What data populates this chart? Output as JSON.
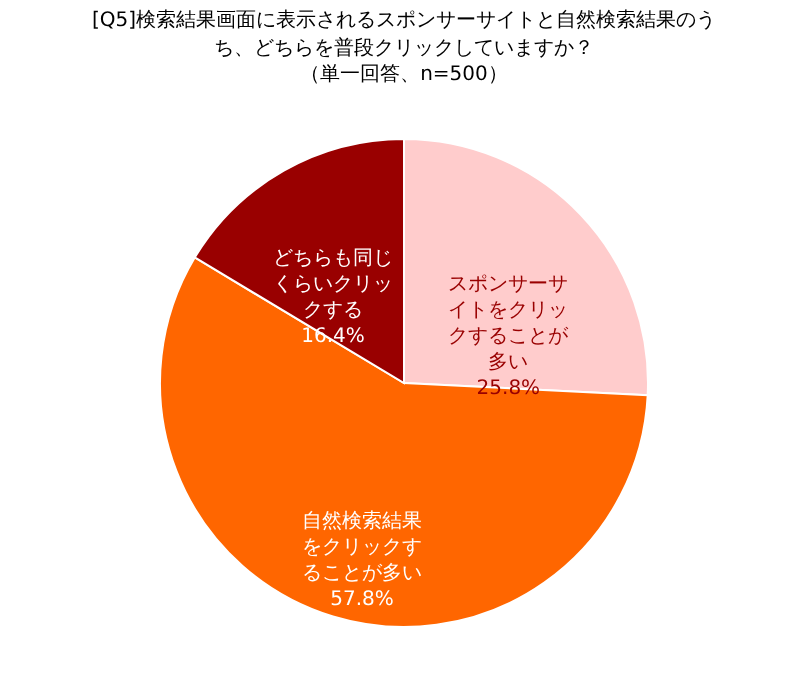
{
  "chart_data": {
    "type": "pie",
    "title": "[Q5]検索結果画面に表示されるスポンサーサイトと自然検索結果のうち、どちらを普段クリックしていますか？",
    "subtitle": "（単一回答、n=500）",
    "categories": [
      "スポンサーサイトをクリックすることが多い",
      "自然検索結果をクリックすることが多い",
      "どちらも同じくらいクリックする"
    ],
    "values": [
      25.8,
      57.8,
      16.4
    ],
    "colors": [
      "#ffcccc",
      "#ff6600",
      "#990000"
    ],
    "value_labels": [
      "25.8%",
      "57.8%",
      "16.4%"
    ],
    "legend": false
  }
}
